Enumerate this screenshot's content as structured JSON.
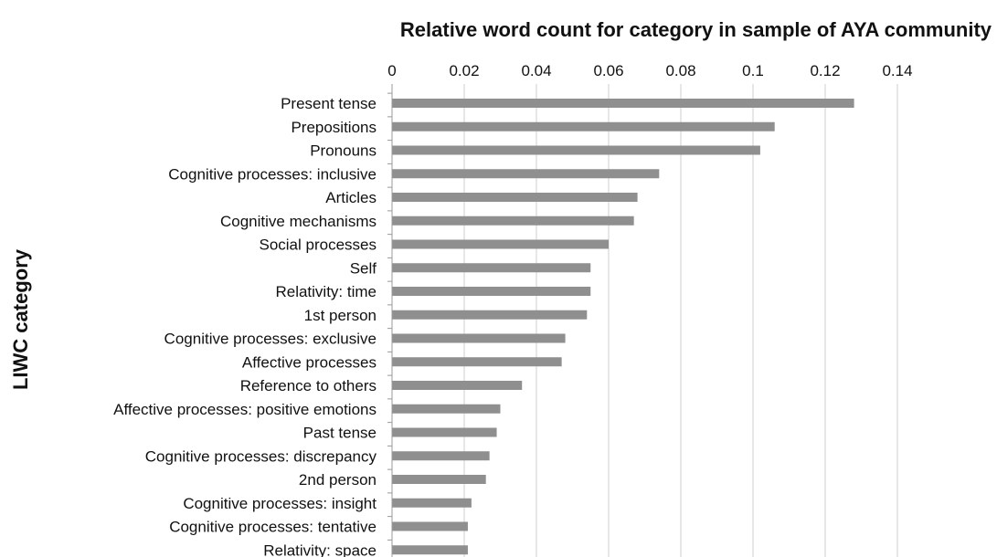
{
  "chart_data": {
    "type": "bar",
    "orientation": "horizontal",
    "title": "Relative word count for category in sample of AYA community",
    "xlabel": "",
    "ylabel": "LIWC category",
    "xlim": [
      0,
      0.14
    ],
    "xticks": [
      "0",
      "0.02",
      "0.04",
      "0.06",
      "0.08",
      "0.1",
      "0.12",
      "0.14"
    ],
    "grid": true,
    "x_axis_position": "top",
    "bar_color": "#8f8f8f",
    "categories": [
      "Present tense",
      "Prepositions",
      "Pronouns",
      "Cognitive processes: inclusive",
      "Articles",
      "Cognitive mechanisms",
      "Social processes",
      "Self",
      "Relativity: time",
      "1st person",
      "Cognitive processes: exclusive",
      "Affective processes",
      "Reference to others",
      "Affective processes: positive emotions",
      "Past tense",
      "Cognitive processes: discrepancy",
      "2nd person",
      "Cognitive processes: insight",
      "Cognitive processes: tentative",
      "Relativity: space"
    ],
    "values": [
      0.128,
      0.106,
      0.102,
      0.074,
      0.068,
      0.067,
      0.06,
      0.055,
      0.055,
      0.054,
      0.048,
      0.047,
      0.036,
      0.03,
      0.029,
      0.027,
      0.026,
      0.022,
      0.021,
      0.021
    ]
  }
}
